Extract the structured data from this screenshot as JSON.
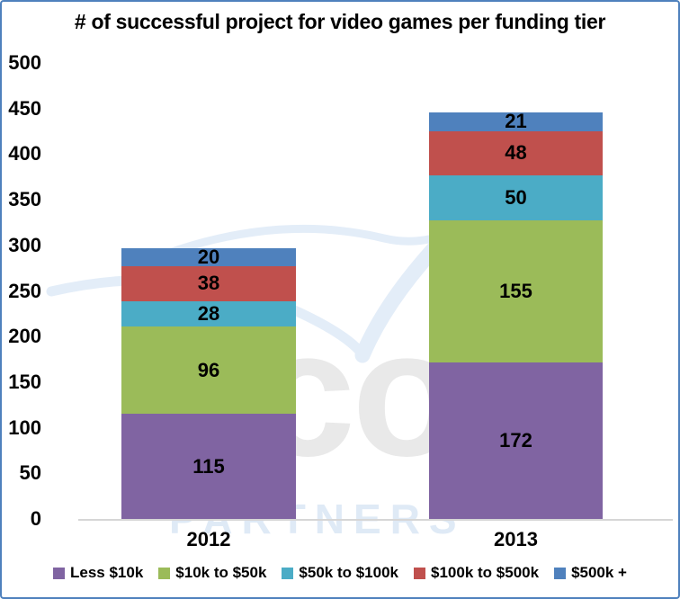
{
  "chart_data": {
    "type": "bar",
    "stacked": true,
    "title": "# of successful project for video games per funding tier",
    "categories": [
      "2012",
      "2013"
    ],
    "series": [
      {
        "name": "Less $10k",
        "color": "#8064A2",
        "values": [
          115,
          172
        ]
      },
      {
        "name": "$10k to $50k",
        "color": "#9BBB59",
        "values": [
          96,
          155
        ]
      },
      {
        "name": "$50k to $100k",
        "color": "#4BACC6",
        "values": [
          28,
          50
        ]
      },
      {
        "name": "$100k to $500k",
        "color": "#C0504D",
        "values": [
          38,
          48
        ]
      },
      {
        "name": "$500k +",
        "color": "#4F81BD",
        "values": [
          20,
          21
        ]
      }
    ],
    "totals": [
      297,
      446
    ],
    "y_axis": {
      "min": 0,
      "max": 500,
      "step": 50,
      "tick_labels": [
        "0",
        "50",
        "100",
        "150",
        "200",
        "250",
        "300",
        "350",
        "400",
        "450",
        "500"
      ]
    },
    "xlabel": "",
    "ylabel": "",
    "gridlines": false,
    "legend_position": "bottom",
    "value_labels": "center"
  },
  "watermark": {
    "logo_text": "co",
    "subtext": "PARTNERS",
    "check_color": "#E3EDF8",
    "logo_color": "#E9E9E9",
    "subtext_color": "#DFEAF6"
  },
  "frame": {
    "border_color": "#4F81BD",
    "background": "#FFFFFF"
  }
}
